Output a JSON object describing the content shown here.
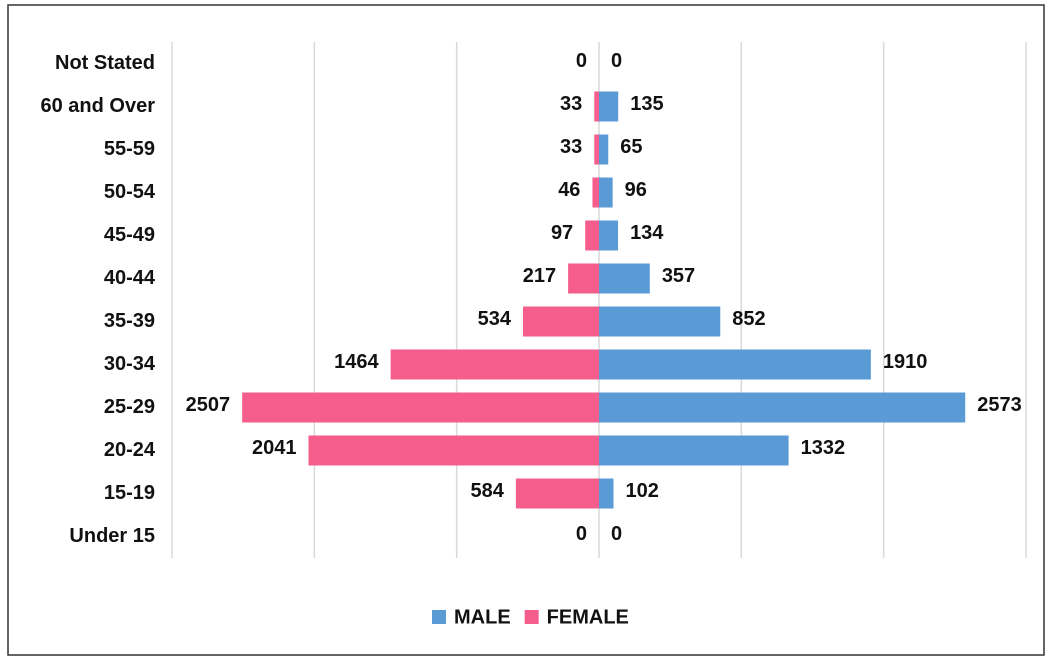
{
  "chart_data": {
    "type": "pyramid",
    "categories": [
      "Not Stated",
      "60 and Over",
      "55-59",
      "50-54",
      "45-49",
      "40-44",
      "35-39",
      "30-34",
      "25-29",
      "20-24",
      "15-19",
      "Under 15"
    ],
    "series": [
      {
        "name": "MALE",
        "color": "#5b9bd5",
        "values": [
          0,
          135,
          65,
          96,
          134,
          357,
          852,
          1910,
          2573,
          1332,
          102,
          0
        ]
      },
      {
        "name": "FEMALE",
        "color": "#f55d8c",
        "values": [
          0,
          33,
          33,
          46,
          97,
          217,
          534,
          1464,
          2507,
          2041,
          584,
          0
        ]
      }
    ],
    "xlim": [
      -3000,
      3000
    ],
    "xticks": [
      -3000,
      -2000,
      -1000,
      0,
      1000,
      2000,
      3000
    ],
    "grid": true,
    "legend": "bottom"
  }
}
